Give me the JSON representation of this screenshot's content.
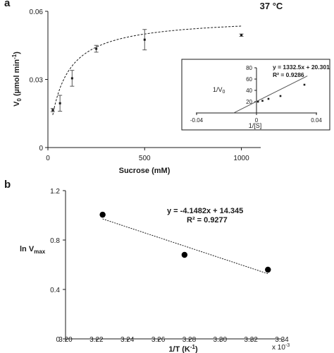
{
  "chart_data": [
    {
      "type": "scatter",
      "panel_label": "a",
      "annotation": "37 °C",
      "xlabel": "Sucrose (mM)",
      "ylabel_main": "V",
      "ylabel_sub": "0",
      "ylabel_rest": " (µmol min",
      "ylabel_sup": "-1",
      "ylabel_end": ")",
      "xlim": [
        0,
        1100
      ],
      "ylim": [
        0,
        0.06
      ],
      "xticks": [
        0,
        500,
        1000
      ],
      "xtick_labels": [
        "0",
        "500",
        "1000"
      ],
      "yticks": [
        0,
        0.03,
        0.06
      ],
      "ytick_labels": [
        "0",
        "0.03",
        "0.06"
      ],
      "x": [
        25,
        62.5,
        125,
        250,
        500,
        1000
      ],
      "y": [
        0.0165,
        0.0195,
        0.0305,
        0.0435,
        0.0475,
        0.0495
      ],
      "y_err": [
        0.0007,
        0.0035,
        0.0035,
        0.0015,
        0.0045,
        0.0005
      ],
      "fit": {
        "style": "dashed",
        "model": "michaelis-menten",
        "vmax": 0.0575,
        "km": 75
      },
      "inset": {
        "type": "scatter",
        "xlabel": "1/[S]",
        "ylabel_main": "1/V",
        "ylabel_sub": "0",
        "equation": "y = 1332.5x + 20.301",
        "r2": "R² = 0.9286",
        "xlim": [
          -0.04,
          0.04
        ],
        "ylim": [
          0,
          80
        ],
        "xticks": [
          -0.04,
          0,
          0.04
        ],
        "xtick_labels": [
          "-0.04",
          "0",
          "0.04"
        ],
        "yticks": [
          0,
          20,
          40,
          60,
          80
        ],
        "ytick_labels": [
          "0",
          "20",
          "40",
          "60",
          "80"
        ],
        "x": [
          0.001,
          0.004,
          0.008,
          0.016,
          0.032
        ],
        "y": [
          20,
          21.5,
          25,
          30,
          50
        ],
        "trendline": {
          "slope": 1332.5,
          "intercept": 20.301,
          "x_range": [
            -0.0153,
            0.034
          ]
        }
      }
    },
    {
      "type": "scatter",
      "panel_label": "b",
      "xlabel": "1/T (K",
      "xlabel_sup": "-1",
      "xlabel_end": ")",
      "x_multiplier": "x 10",
      "x_multiplier_sup": "-3",
      "ylabel_main": "ln V",
      "ylabel_sub": "max",
      "equation": "y = -4.1482x + 14.345",
      "r2": "R² = 0.9277",
      "xlim": [
        3.2,
        3.34
      ],
      "ylim": [
        0,
        1.2
      ],
      "xticks": [
        3.2,
        3.22,
        3.24,
        3.26,
        3.28,
        3.3,
        3.32,
        3.34
      ],
      "xtick_labels": [
        "3.20",
        "3.22",
        "3.24",
        "3.26",
        "3.28",
        "3.30",
        "3.32",
        "3.34"
      ],
      "yticks": [
        0,
        0.4,
        0.8,
        1.2
      ],
      "ytick_labels": [
        "0",
        "0.4",
        "0.8",
        "1.2"
      ],
      "x": [
        3.224,
        3.277,
        3.331
      ],
      "y": [
        1.005,
        0.68,
        0.56
      ],
      "trendline": {
        "slope": -4.1482,
        "intercept": 14.345,
        "x_range": [
          3.224,
          3.331
        ]
      }
    }
  ]
}
